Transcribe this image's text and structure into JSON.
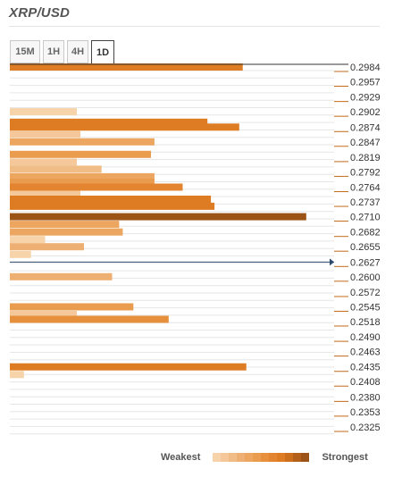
{
  "header": {
    "title": "XRP/USD"
  },
  "tabs": [
    {
      "label": "15M",
      "active": false
    },
    {
      "label": "1H",
      "active": false
    },
    {
      "label": "4H",
      "active": false
    },
    {
      "label": "1D",
      "active": true
    }
  ],
  "legend": {
    "weakest": "Weakest",
    "strongest": "Strongest"
  },
  "colors": {
    "scale": [
      "#f7d3a9",
      "#f4c89a",
      "#f1bd87",
      "#eeb072",
      "#eca660",
      "#e99b4e",
      "#e6903d",
      "#e38530",
      "#dd7c22",
      "#cc6f1c",
      "#b3601a",
      "#9b5416"
    ],
    "current_price_line": "#2c4a6e",
    "axis": "#333333",
    "tick": "#c26a1a",
    "grid": "#e6e6e6"
  },
  "chart_data": {
    "type": "bar",
    "orientation": "horizontal",
    "description_axis": "price",
    "y_ticks": [
      "0.2984",
      "0.2957",
      "0.2929",
      "0.2902",
      "0.2874",
      "0.2847",
      "0.2819",
      "0.2792",
      "0.2764",
      "0.2737",
      "0.2710",
      "0.2682",
      "0.2655",
      "0.2627",
      "0.2600",
      "0.2572",
      "0.2545",
      "0.2518",
      "0.2490",
      "0.2463",
      "0.2435",
      "0.2408",
      "0.2380",
      "0.2353",
      "0.2325"
    ],
    "y_range": [
      0.2325,
      0.2984
    ],
    "current_price": 0.2627,
    "x_range": [
      0,
      100
    ],
    "bars": [
      {
        "price": 0.2984,
        "strength": 66,
        "level": 8
      },
      {
        "price": 0.2902,
        "strength": 19,
        "level": 0
      },
      {
        "price": 0.2883,
        "strength": 56,
        "level": 8
      },
      {
        "price": 0.2874,
        "strength": 65,
        "level": 8
      },
      {
        "price": 0.2861,
        "strength": 20,
        "level": 1
      },
      {
        "price": 0.2847,
        "strength": 41,
        "level": 4
      },
      {
        "price": 0.2824,
        "strength": 40,
        "level": 5
      },
      {
        "price": 0.281,
        "strength": 19,
        "level": 1
      },
      {
        "price": 0.2797,
        "strength": 26,
        "level": 2
      },
      {
        "price": 0.2783,
        "strength": 41,
        "level": 4
      },
      {
        "price": 0.2773,
        "strength": 41,
        "level": 5
      },
      {
        "price": 0.2764,
        "strength": 49,
        "level": 7
      },
      {
        "price": 0.2751,
        "strength": 20,
        "level": 1
      },
      {
        "price": 0.2742,
        "strength": 57,
        "level": 8
      },
      {
        "price": 0.2729,
        "strength": 58,
        "level": 8
      },
      {
        "price": 0.271,
        "strength": 84,
        "level": 11
      },
      {
        "price": 0.2696,
        "strength": 31,
        "level": 4
      },
      {
        "price": 0.2682,
        "strength": 32,
        "level": 4
      },
      {
        "price": 0.2668,
        "strength": 10,
        "level": 0
      },
      {
        "price": 0.2655,
        "strength": 21,
        "level": 3
      },
      {
        "price": 0.2641,
        "strength": 6,
        "level": 0
      },
      {
        "price": 0.26,
        "strength": 29,
        "level": 3
      },
      {
        "price": 0.2545,
        "strength": 35,
        "level": 5
      },
      {
        "price": 0.2531,
        "strength": 19,
        "level": 1
      },
      {
        "price": 0.2522,
        "strength": 45,
        "level": 6
      },
      {
        "price": 0.2435,
        "strength": 67,
        "level": 8
      },
      {
        "price": 0.2421,
        "strength": 4,
        "level": 0
      }
    ],
    "legend_placement": "bottom-right",
    "grid": true
  }
}
